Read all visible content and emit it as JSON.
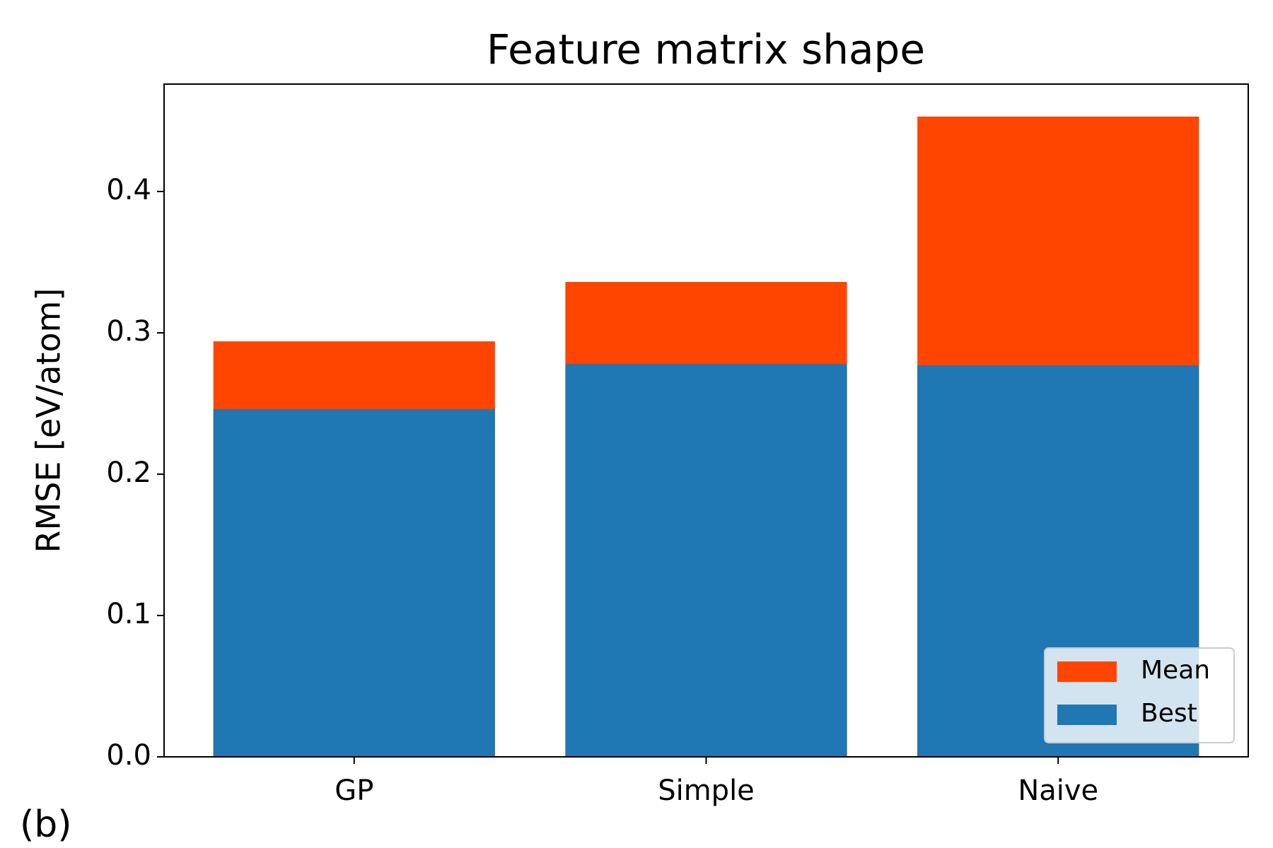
{
  "chart_data": {
    "type": "bar",
    "title": "Feature matrix shape",
    "ylabel": "RMSE [eV/atom]",
    "panel_label": "(b)",
    "categories": [
      "GP",
      "Simple",
      "Naive"
    ],
    "series": [
      {
        "name": "Mean",
        "color": "#ff4500",
        "values": [
          0.294,
          0.336,
          0.453
        ]
      },
      {
        "name": "Best",
        "color": "#1f77b4",
        "values": [
          0.246,
          0.278,
          0.277
        ]
      }
    ],
    "ylim": [
      0,
      0.476
    ],
    "yticks": [
      0.0,
      0.1,
      0.2,
      0.3,
      0.4
    ],
    "legend": "lower right"
  }
}
